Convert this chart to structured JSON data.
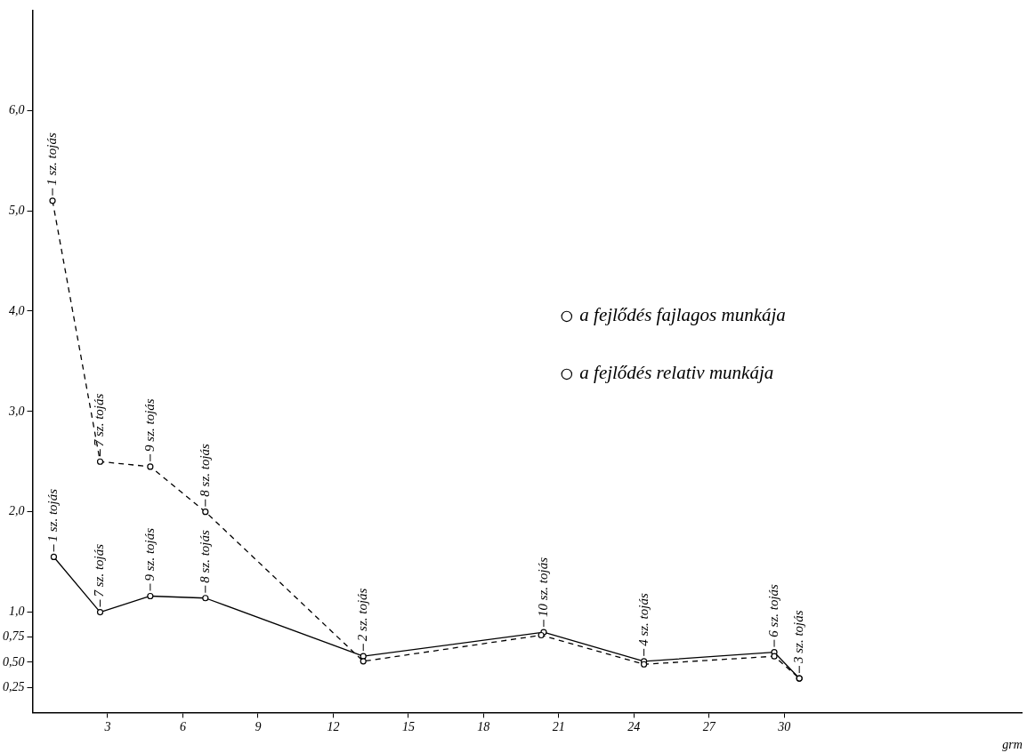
{
  "chart_data": {
    "type": "line",
    "xlabel": "grm",
    "xlim": [
      0,
      39.5
    ],
    "ylim": [
      0,
      7.0
    ],
    "xticks": [
      3,
      6,
      9,
      12,
      15,
      18,
      21,
      24,
      27,
      30
    ],
    "yticks": [
      {
        "value": 0.25,
        "label": "0,25"
      },
      {
        "value": 0.5,
        "label": "0,50"
      },
      {
        "value": 0.75,
        "label": "0,75"
      },
      {
        "value": 1,
        "label": "1,0"
      },
      {
        "value": 2,
        "label": "2,0"
      },
      {
        "value": 3,
        "label": "3,0"
      },
      {
        "value": 4,
        "label": "4,0"
      },
      {
        "value": 5,
        "label": "5,0"
      },
      {
        "value": 6,
        "label": "6,0"
      }
    ],
    "grid": false,
    "legend": "right",
    "marker": "circle",
    "series": [
      {
        "name": "a fejlődés fajlagos munkája",
        "color": "#000000",
        "line_style": "dashed",
        "x": [
          0.8,
          2.7,
          4.7,
          6.9,
          13.2,
          20.3,
          24.4,
          29.6,
          30.6
        ],
        "values": [
          5.1,
          2.5,
          2.45,
          2.0,
          0.51,
          0.77,
          0.48,
          0.56,
          0.34
        ]
      },
      {
        "name": "a fejlődés relativ munkája",
        "color": "#000000",
        "line_style": "solid",
        "x": [
          0.85,
          2.7,
          4.7,
          6.9,
          13.2,
          20.4,
          24.4,
          29.6,
          30.6
        ],
        "values": [
          1.55,
          1.0,
          1.16,
          1.14,
          0.56,
          0.8,
          0.51,
          0.6,
          0.34
        ]
      }
    ],
    "annotations": [
      {
        "text": "1 sz. tojás",
        "x": 0.8,
        "y": 5.1
      },
      {
        "text": "7 sz. tojás",
        "x": 2.7,
        "y": 2.5
      },
      {
        "text": "9 sz. tojás",
        "x": 4.7,
        "y": 2.45
      },
      {
        "text": "8 sz. tojás",
        "x": 6.9,
        "y": 2.0
      },
      {
        "text": "1 sz. tojás",
        "x": 0.85,
        "y": 1.55
      },
      {
        "text": "7 sz. tojás",
        "x": 2.7,
        "y": 1.0
      },
      {
        "text": "9 sz. tojás",
        "x": 4.7,
        "y": 1.16
      },
      {
        "text": "8 sz. tojás",
        "x": 6.9,
        "y": 1.14
      },
      {
        "text": "2 sz. tojás",
        "x": 13.2,
        "y": 0.56
      },
      {
        "text": "10 sz. tojás",
        "x": 20.4,
        "y": 0.8
      },
      {
        "text": "4 sz. tojás",
        "x": 24.4,
        "y": 0.51
      },
      {
        "text": "6 sz. tojás",
        "x": 29.6,
        "y": 0.6
      },
      {
        "text": "3 sz. tojás",
        "x": 30.6,
        "y": 0.34
      }
    ]
  }
}
